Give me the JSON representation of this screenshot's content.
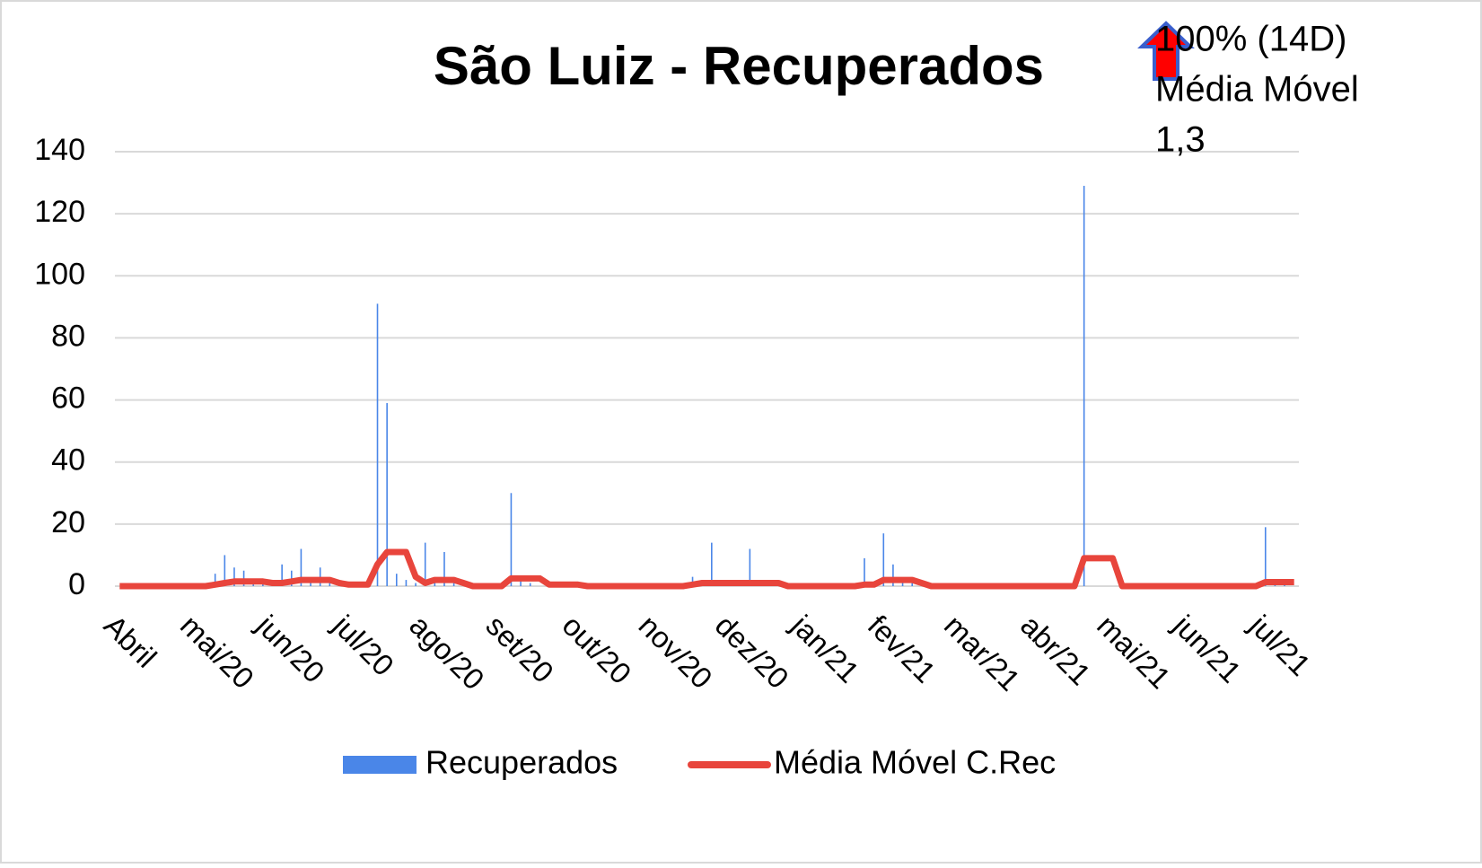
{
  "chart_data": {
    "type": "bar-line",
    "title": "São Luiz - Recuperados",
    "annotation": [
      "100% (14D)",
      "Média Móvel",
      "1,3"
    ],
    "categories": [
      "Abril",
      null,
      null,
      null,
      null,
      null,
      null,
      null,
      "mai/20",
      null,
      null,
      null,
      null,
      null,
      null,
      null,
      "jun/20",
      null,
      null,
      null,
      null,
      null,
      null,
      null,
      "jul/20",
      null,
      null,
      null,
      null,
      null,
      null,
      null,
      "ago/20",
      null,
      null,
      null,
      null,
      null,
      null,
      null,
      "set/20",
      null,
      null,
      null,
      null,
      null,
      null,
      null,
      "out/20",
      null,
      null,
      null,
      null,
      null,
      null,
      null,
      "nov/20",
      null,
      null,
      null,
      null,
      null,
      null,
      null,
      "dez/20",
      null,
      null,
      null,
      null,
      null,
      null,
      null,
      "jan/21",
      null,
      null,
      null,
      null,
      null,
      null,
      null,
      "fev/21",
      null,
      null,
      null,
      null,
      null,
      null,
      null,
      "mar/21",
      null,
      null,
      null,
      null,
      null,
      null,
      null,
      "abr/21",
      null,
      null,
      null,
      null,
      null,
      null,
      null,
      "mai/21",
      null,
      null,
      null,
      null,
      null,
      null,
      null,
      "jun/21",
      null,
      null,
      null,
      null,
      null,
      null,
      null,
      "jul/21",
      null,
      null,
      null
    ],
    "series": [
      {
        "name": "Recuperados",
        "kind": "bar",
        "color": "#4a86e8",
        "values": [
          0,
          0,
          0,
          0,
          0,
          0,
          0,
          0,
          0,
          1,
          4,
          10,
          6,
          5,
          2,
          1,
          1,
          7,
          5,
          12,
          2,
          6,
          2,
          1,
          0,
          1,
          0,
          91,
          59,
          4,
          2,
          1,
          14,
          2,
          11,
          1,
          0,
          0,
          0,
          0,
          0,
          30,
          2,
          1,
          0,
          0,
          0,
          0,
          0,
          0,
          0,
          0,
          0,
          0,
          0,
          0,
          0,
          0,
          0,
          0,
          3,
          1,
          14,
          1,
          1,
          1,
          12,
          1,
          0,
          0,
          0,
          0,
          0,
          0,
          0,
          0,
          0,
          0,
          9,
          1,
          17,
          7,
          2,
          1,
          0,
          0,
          0,
          0,
          0,
          0,
          0,
          0,
          0,
          0,
          0,
          0,
          0,
          0,
          0,
          0,
          0,
          129,
          0,
          0,
          0,
          0,
          0,
          0,
          0,
          0,
          0,
          0,
          0,
          0,
          0,
          0,
          0,
          0,
          0,
          0,
          19,
          1,
          1,
          0
        ]
      },
      {
        "name": "Média Móvel C.Rec",
        "kind": "line",
        "color": "#e8453c",
        "values": [
          0,
          0,
          0,
          0,
          0,
          0,
          0,
          0,
          0,
          0,
          0.5,
          1,
          1.5,
          1.5,
          1.5,
          1.5,
          1,
          1,
          1.5,
          2,
          2,
          2,
          2,
          1,
          0.5,
          0.5,
          0.5,
          7,
          11,
          11,
          11,
          3,
          1,
          2,
          2,
          2,
          1,
          0,
          0,
          0,
          0,
          2.5,
          2.5,
          2.5,
          2.5,
          0.5,
          0.5,
          0.5,
          0.5,
          0,
          0,
          0,
          0,
          0,
          0,
          0,
          0,
          0,
          0,
          0,
          0.5,
          1,
          1,
          1,
          1,
          1,
          1,
          1,
          1,
          1,
          0,
          0,
          0,
          0,
          0,
          0,
          0,
          0,
          0.5,
          0.5,
          2,
          2,
          2,
          2,
          1,
          0,
          0,
          0,
          0,
          0,
          0,
          0,
          0,
          0,
          0,
          0,
          0,
          0,
          0,
          0,
          0,
          9,
          9,
          9,
          9,
          0,
          0,
          0,
          0,
          0,
          0,
          0,
          0,
          0,
          0,
          0,
          0,
          0,
          0,
          0,
          1.3,
          1.3,
          1.3,
          1.3
        ]
      }
    ],
    "ylim": [
      0,
      140
    ],
    "yticks": [
      0,
      20,
      40,
      60,
      80,
      100,
      120,
      140
    ],
    "grid": true,
    "legend": "bottom"
  }
}
